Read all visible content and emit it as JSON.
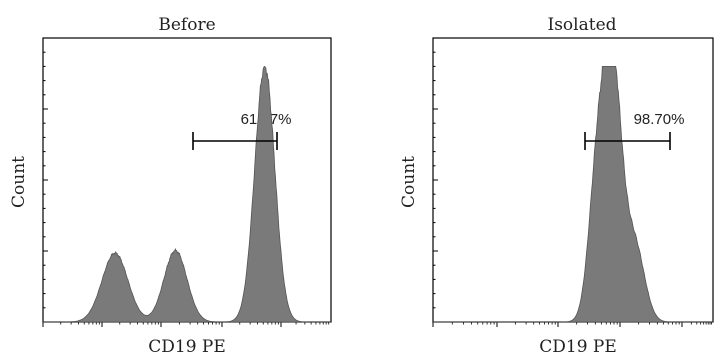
{
  "chart_data": [
    {
      "type": "area",
      "title": "Before",
      "xlabel": "CD19 PE",
      "ylabel": "Count",
      "x_scale": "log",
      "gate": {
        "label": "61.57%"
      },
      "peaks": [
        {
          "center": 0.25,
          "width": 0.045,
          "height": 0.27
        },
        {
          "center": 0.46,
          "width": 0.04,
          "height": 0.28
        },
        {
          "center": 0.77,
          "width": 0.035,
          "height": 1.0
        }
      ],
      "fill_color": "#7a7a7a"
    },
    {
      "type": "area",
      "title": "Isolated",
      "xlabel": "CD19 PE",
      "ylabel": "Count",
      "x_scale": "log",
      "gate": {
        "label": "98.70%"
      },
      "peaks": [
        {
          "center": 0.585,
          "width": 0.03,
          "height": 0.52
        },
        {
          "center": 0.64,
          "width": 0.033,
          "height": 1.0
        },
        {
          "center": 0.72,
          "width": 0.035,
          "height": 0.3
        }
      ],
      "fill_color": "#7a7a7a"
    }
  ]
}
